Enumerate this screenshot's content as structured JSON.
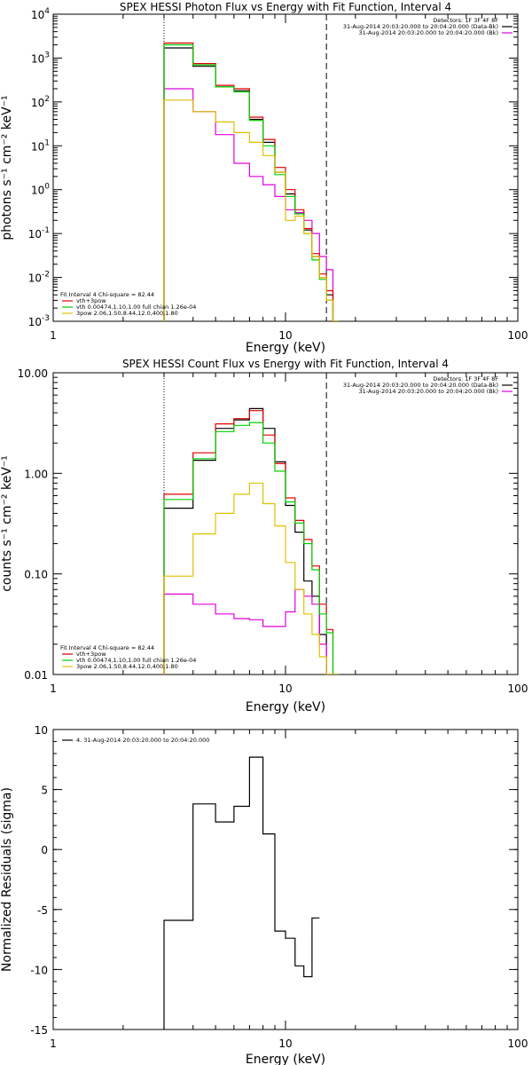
{
  "chart_data": [
    {
      "type": "line",
      "title": "SPEX HESSI Photon Flux vs Energy with Fit Function, Interval 4",
      "xlabel": "Energy (keV)",
      "ylabel": "photons s⁻¹ cm⁻² keV⁻¹",
      "xscale": "log",
      "yscale": "log",
      "xlim": [
        1,
        100
      ],
      "ylim": [
        0.001,
        10000
      ],
      "xticks": [
        "1",
        "10",
        "100"
      ],
      "ytick_exponents": [
        "-3",
        "-2",
        "-1",
        "0",
        "1",
        "2",
        "3",
        "4"
      ],
      "ymarks": [
        "4",
        "3",
        "2",
        "1",
        "0",
        "-1",
        "-2",
        "-3"
      ],
      "vlines": [
        {
          "x": 3,
          "style": "dotted"
        },
        {
          "x": 15,
          "style": "dashed"
        }
      ],
      "legend_tr": [
        {
          "text": "Detectors: 1F 3F 4F 8F",
          "color": ""
        },
        {
          "text": "31-Aug-2014 20:03:20.000 to 20:04:20.000 (Data-Bk)",
          "color": "#000000"
        },
        {
          "text": "31-Aug-2014 20:03:20.000 to 20:04:20.000 (Bk)",
          "color": "#e000e0"
        }
      ],
      "legend_bl": [
        {
          "text": "Fit Interval 4   Chi-square = 82.44",
          "color": ""
        },
        {
          "text": "vth+3pow",
          "color": "#e00000"
        },
        {
          "text": "vth 0.00474,1.10,1.00  full chian 1.26e-04",
          "color": "#00d000"
        },
        {
          "text": "3pow 2.06,1.50,8.44,12.0,400,1.80",
          "color": "#e0c000"
        }
      ],
      "edges": [
        3,
        4,
        5,
        6,
        7,
        8,
        9,
        10,
        11,
        12,
        13,
        14,
        15,
        16,
        17
      ],
      "series": [
        {
          "color": "#000000",
          "values": [
            1700,
            650,
            220,
            180,
            40,
            12,
            2.5,
            0.8,
            0.3,
            0.12,
            0.03,
            0.01,
            0.004,
            0.0008
          ]
        },
        {
          "color": "#e000e0",
          "values": [
            200,
            60,
            18,
            4,
            2,
            1.3,
            0.7,
            0.35,
            0.3,
            0.2,
            0.1,
            0.03,
            0.015,
            0.0008
          ]
        },
        {
          "color": "#e00000",
          "values": [
            2200,
            750,
            240,
            200,
            45,
            14,
            3.2,
            1.0,
            0.35,
            0.13,
            0.035,
            0.012,
            0.005,
            0.0008
          ]
        },
        {
          "color": "#00d000",
          "values": [
            2000,
            700,
            220,
            170,
            38,
            10,
            2.2,
            0.7,
            0.28,
            0.1,
            0.025,
            0.009,
            0.003,
            0.0008
          ]
        },
        {
          "color": "#e0c000",
          "values": [
            110,
            60,
            35,
            20,
            12,
            6,
            2.5,
            0.2,
            0.25,
            0.1,
            0.03,
            0.01,
            0.003,
            0.0008
          ]
        }
      ]
    },
    {
      "type": "line",
      "title": "SPEX HESSI Count Flux vs Energy with Fit Function, Interval 4",
      "xlabel": "Energy (keV)",
      "ylabel": "counts s⁻¹ cm⁻² keV⁻¹",
      "xscale": "log",
      "yscale": "log",
      "xlim": [
        1,
        100
      ],
      "ylim": [
        0.01,
        10
      ],
      "xticks": [
        "1",
        "10",
        "100"
      ],
      "yticks": [
        "0.01",
        "0.10",
        "1.00",
        "10.00"
      ],
      "yvalues": [
        0.01,
        0.1,
        1,
        10
      ],
      "vlines": [
        {
          "x": 3,
          "style": "dotted"
        },
        {
          "x": 15,
          "style": "dashed"
        }
      ],
      "legend_tr": [
        {
          "text": "Detectors: 1F 3F 4F 8F",
          "color": ""
        },
        {
          "text": "31-Aug-2014 20:03:20.000 to 20:04:20.000 (Data-Bk)",
          "color": "#000000"
        },
        {
          "text": "31-Aug-2014 20:03:20.000 to 20:04:20.000 (Bk)",
          "color": "#e000e0"
        }
      ],
      "legend_bl": [
        {
          "text": "Fit Interval 4   Chi-square = 82.44",
          "color": ""
        },
        {
          "text": "vth+3pow",
          "color": "#e00000"
        },
        {
          "text": "vth 0.00474,1.10,1.00  full chian 1.26e-04",
          "color": "#00d000"
        },
        {
          "text": "3pow 2.06,1.50,8.44,12.0,400,1.80",
          "color": "#e0c000"
        }
      ],
      "edges": [
        3,
        4,
        5,
        6,
        7,
        8,
        9,
        10,
        11,
        12,
        13,
        14,
        15,
        16,
        17
      ],
      "series": [
        {
          "color": "#000000",
          "values": [
            0.45,
            1.35,
            2.8,
            3.4,
            4.4,
            2.8,
            1.3,
            0.48,
            0.26,
            0.085,
            0.06,
            0.025,
            0.01,
            0.01
          ]
        },
        {
          "color": "#e000e0",
          "values": [
            0.063,
            0.05,
            0.04,
            0.036,
            0.035,
            0.03,
            0.03,
            0.042,
            0.07,
            0.06,
            0.05,
            0.02,
            0.01,
            0.01
          ]
        },
        {
          "color": "#e00000",
          "values": [
            0.62,
            1.6,
            3.1,
            3.5,
            4.2,
            2.4,
            1.25,
            0.57,
            0.34,
            0.22,
            0.12,
            0.05,
            0.028,
            0.01
          ]
        },
        {
          "color": "#00d000",
          "values": [
            0.55,
            1.4,
            2.6,
            3.0,
            3.2,
            2.0,
            1.05,
            0.52,
            0.32,
            0.2,
            0.11,
            0.04,
            0.026,
            0.01
          ]
        },
        {
          "color": "#e0c000",
          "values": [
            0.095,
            0.25,
            0.4,
            0.62,
            0.8,
            0.5,
            0.3,
            0.13,
            0.07,
            0.04,
            0.025,
            0.015,
            0.01,
            0.01
          ]
        }
      ]
    },
    {
      "type": "line",
      "title": "",
      "xlabel": "Energy (keV)",
      "ylabel": "Normalized Residuals (sigma)",
      "xscale": "log",
      "yscale": "linear",
      "xlim": [
        1,
        100
      ],
      "ylim": [
        -15,
        10
      ],
      "xticks": [
        "1",
        "10",
        "100"
      ],
      "yticks": [
        "-15",
        "-10",
        "-5",
        "0",
        "5",
        "10"
      ],
      "yvalues": [
        -15,
        -10,
        -5,
        0,
        5,
        10
      ],
      "legend_tl": [
        {
          "text": "4. 31-Aug-2014 20:03:20.000 to 20:04:20.000",
          "color": "#000000"
        }
      ],
      "edges": [
        3,
        4,
        5,
        6,
        7,
        8,
        9,
        10,
        11,
        12,
        13,
        14,
        15
      ],
      "series": [
        {
          "color": "#000000",
          "values": [
            -5.9,
            3.8,
            2.3,
            3.6,
            7.7,
            1.3,
            -6.8,
            -7.4,
            -9.7,
            -10.6,
            -5.7
          ]
        }
      ]
    }
  ]
}
